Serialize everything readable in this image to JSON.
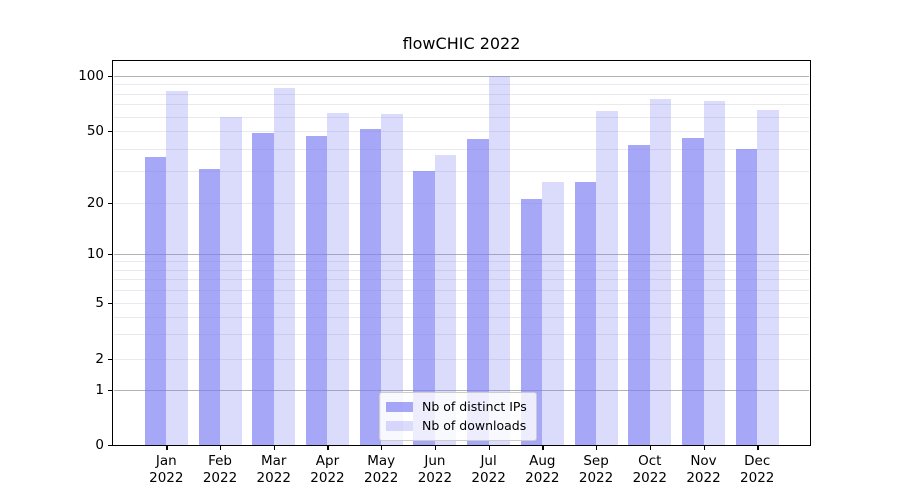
{
  "title": "flowCHIC 2022",
  "chart_data": {
    "type": "bar",
    "title": "flowCHIC 2022",
    "x_months": [
      "Jan",
      "Feb",
      "Mar",
      "Apr",
      "May",
      "Jun",
      "Jul",
      "Aug",
      "Sep",
      "Oct",
      "Nov",
      "Dec"
    ],
    "x_year": "2022",
    "series": [
      {
        "name": "Nb of distinct IPs",
        "color": "rgba(122,122,244,0.66)",
        "values": [
          36,
          31,
          49,
          47,
          51,
          30,
          45,
          21,
          26,
          42,
          46,
          40
        ]
      },
      {
        "name": "Nb of downloads",
        "color": "rgba(122,122,244,0.27)",
        "values": [
          83,
          60,
          86,
          63,
          62,
          37,
          100,
          26,
          64,
          75,
          73,
          65
        ]
      }
    ],
    "y_scale": "symlog",
    "y_ticks": [
      0,
      1,
      2,
      5,
      10,
      20,
      50,
      100
    ],
    "y_major_gridlines": [
      1,
      10,
      100
    ],
    "y_minor_gridlines": [
      2,
      3,
      4,
      5,
      6,
      7,
      8,
      9,
      20,
      30,
      40,
      50,
      60,
      70,
      80,
      90
    ],
    "ylim": [
      0,
      120
    ],
    "grid": true,
    "legend_position": "lower center"
  },
  "colors": {
    "bar_base": "#7a7af4",
    "grid_major": "#b2b2b2",
    "grid_minor": "#e9e9ef",
    "axis": "#000000",
    "legend_border": "#cccccc",
    "title_text": "#000000"
  }
}
